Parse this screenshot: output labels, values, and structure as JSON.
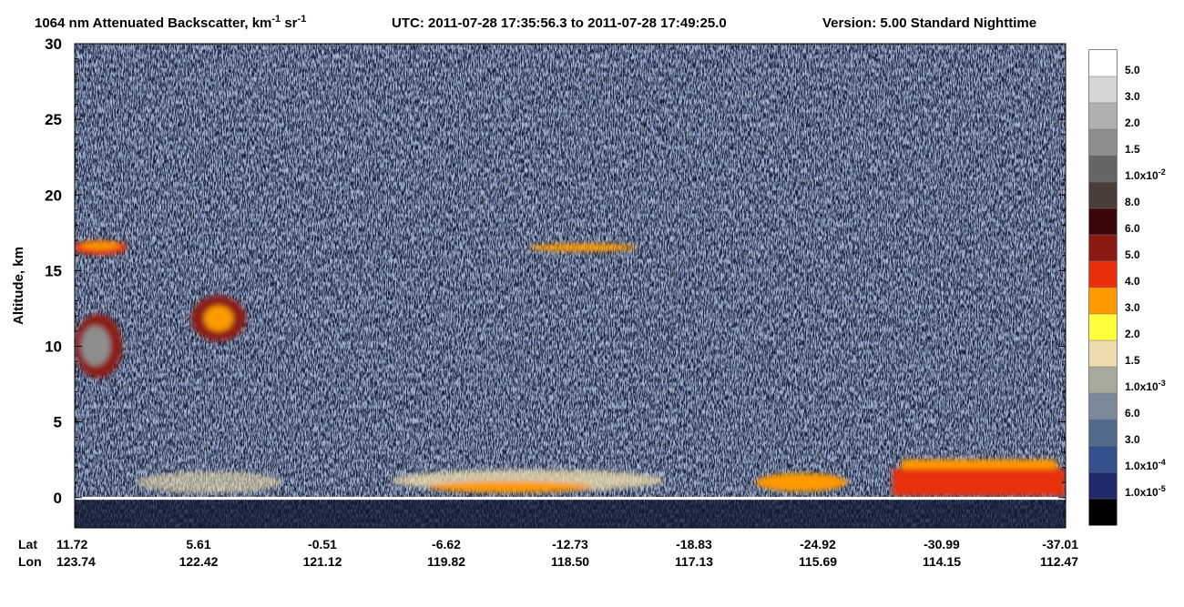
{
  "chart_data": {
    "type": "profile",
    "title_parts": [
      "1064 nm Attenuated Backscatter, km",
      "-1",
      " sr",
      "-1"
    ],
    "time_range": "UTC:  2011-07-28 17:35:56.3  to  2011-07-28 17:49:25.0",
    "version": "Version: 5.00  Standard  Nighttime",
    "y_label": "Altitude, km",
    "ylim": [
      -2,
      30
    ],
    "yticks": [
      0,
      5,
      10,
      15,
      20,
      25,
      30
    ],
    "x_rows": [
      {
        "name": "Lat",
        "labels": [
          "11.72",
          "5.61",
          "-0.51",
          "-6.62",
          "-12.73",
          "-18.83",
          "-24.92",
          "-30.99",
          "-37.01"
        ]
      },
      {
        "name": "Lon",
        "labels": [
          "123.74",
          "122.42",
          "121.12",
          "119.82",
          "118.50",
          "117.13",
          "115.69",
          "114.15",
          "112.47"
        ]
      }
    ],
    "colorbar": {
      "colors": [
        "#ffffff",
        "#d6d6d6",
        "#b0b0b0",
        "#8e8e8e",
        "#656565",
        "#4a3c38",
        "#3a0808",
        "#8c1a12",
        "#e8300c",
        "#ff9a00",
        "#ffff3c",
        "#ecdcae",
        "#a8a89c",
        "#7a8a9a",
        "#526a8c",
        "#34508c",
        "#202a6a",
        "#000000"
      ],
      "labels": [
        "5.0",
        "3.0",
        "2.0",
        "1.5",
        {
          "base": "1.0x10",
          "exp": "-2"
        },
        "8.0",
        "6.0",
        "5.0",
        "4.0",
        "3.0",
        "2.0",
        "1.5",
        {
          "base": "1.0x10",
          "exp": "-3"
        },
        "6.0",
        "3.0",
        {
          "base": "1.0x10",
          "exp": "-4"
        },
        {
          "base": "1.0x10",
          "exp": "-5"
        }
      ]
    }
  }
}
